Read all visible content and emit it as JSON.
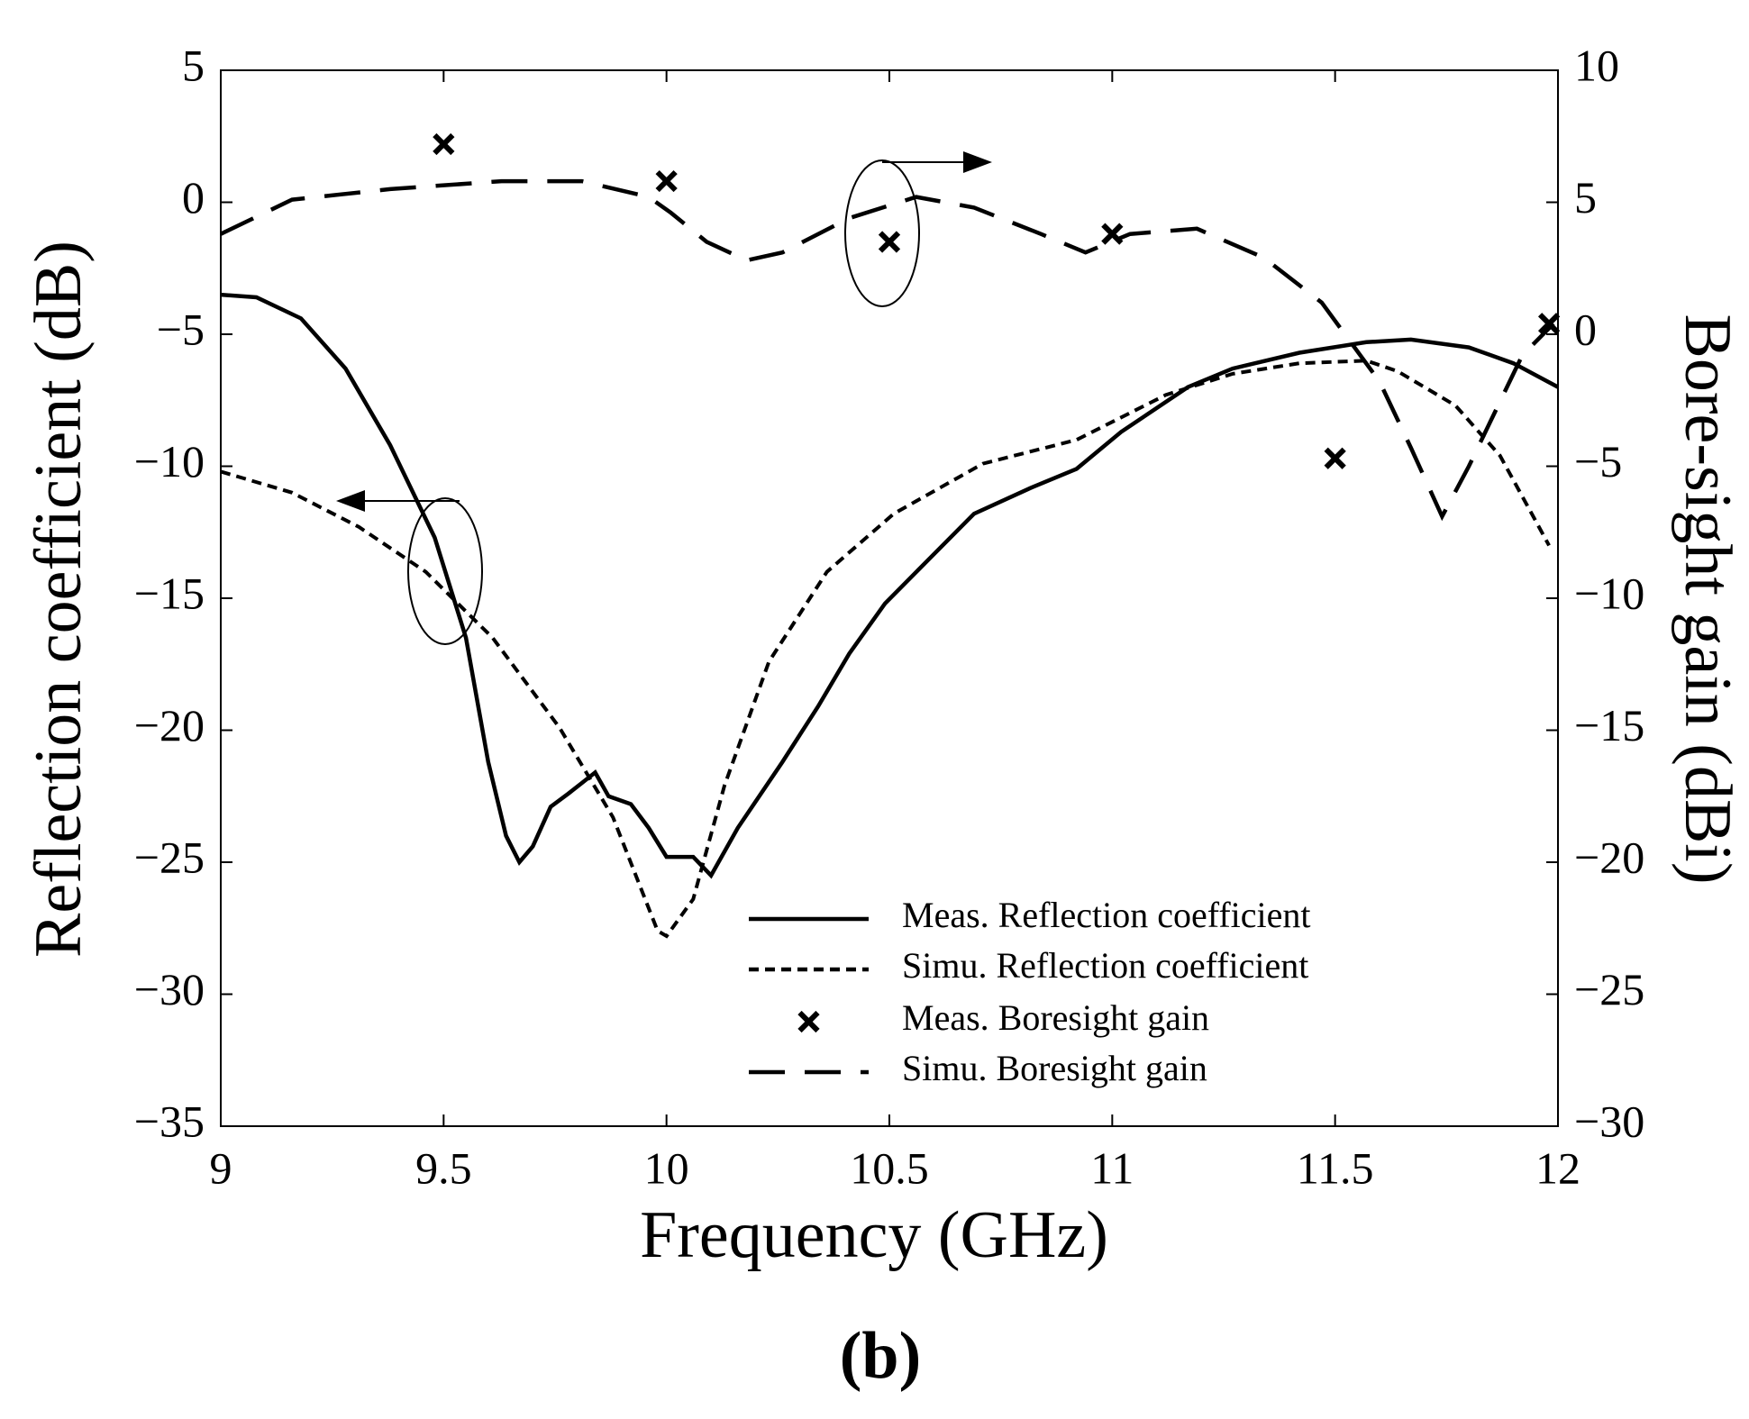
{
  "chart_data": {
    "type": "line",
    "xlabel": "Frequency (GHz)",
    "ylabel": "Reflection coefficient (dB)",
    "y2label": "Bore-sight gain (dBi)",
    "caption": "(b)",
    "xlim": [
      9,
      12
    ],
    "xticks": [
      9,
      9.5,
      10,
      10.5,
      11,
      11.5,
      12
    ],
    "ylim": [
      -35,
      5
    ],
    "yticks": [
      {
        "value": -35,
        "label": "−35"
      },
      {
        "value": -30,
        "label": "−30"
      },
      {
        "value": -25,
        "label": "−25"
      },
      {
        "value": -20,
        "label": "−20"
      },
      {
        "value": -15,
        "label": "−15"
      },
      {
        "value": -10,
        "label": "−10"
      },
      {
        "value": -5,
        "label": "−5"
      },
      0,
      5
    ],
    "y2lim": [
      -30,
      10
    ],
    "y2ticks": [
      {
        "value": -30,
        "label": "−30"
      },
      {
        "value": -25,
        "label": "−25"
      },
      {
        "value": -20,
        "label": "−20"
      },
      {
        "value": -15,
        "label": "−15"
      },
      {
        "value": -10,
        "label": "−10"
      },
      {
        "value": -5,
        "label": "−5"
      },
      0,
      5,
      10
    ],
    "grid": false,
    "legend": "lower right",
    "series": [
      {
        "name": "Meas. Reflection coefficient",
        "color": "#000000",
        "style": "solid",
        "x": [
          9.0,
          9.08,
          9.18,
          9.28,
          9.38,
          9.48,
          9.55,
          9.6,
          9.64,
          9.67,
          9.7,
          9.74,
          9.78,
          9.81,
          9.84,
          9.87,
          9.92,
          9.96,
          10.0,
          10.06,
          10.1,
          10.16,
          10.26,
          10.34,
          10.41,
          10.49,
          10.59,
          10.69,
          10.82,
          10.92,
          11.02,
          11.17,
          11.27,
          11.42,
          11.57,
          11.67,
          11.8,
          11.9,
          12.0
        ],
        "values": [
          -3.5,
          -3.6,
          -4.4,
          -6.3,
          -9.2,
          -12.7,
          -16.5,
          -21.2,
          -24,
          -25,
          -24.4,
          -22.9,
          -22.4,
          -22,
          -21.6,
          -22.5,
          -22.8,
          -23.7,
          -24.8,
          -24.8,
          -25.5,
          -23.7,
          -21.2,
          -19.1,
          -17.1,
          -15.2,
          -13.5,
          -11.8,
          -10.8,
          -10.1,
          -8.7,
          -7.0,
          -6.3,
          -5.7,
          -5.3,
          -5.2,
          -5.5,
          -6.1,
          -7.0
        ]
      },
      {
        "name": "Simu. Reflection coefficient",
        "color": "#000000",
        "style": "dotted",
        "x": [
          9.0,
          9.16,
          9.31,
          9.46,
          9.61,
          9.76,
          9.88,
          9.98,
          10.0,
          10.06,
          10.13,
          10.23,
          10.36,
          10.51,
          10.71,
          10.92,
          11.12,
          11.27,
          11.42,
          11.57,
          11.64,
          11.77,
          11.87,
          11.98
        ],
        "values": [
          -10.2,
          -11,
          -12.3,
          -14,
          -16.5,
          -19.9,
          -23.3,
          -27.6,
          -27.8,
          -26.4,
          -22.1,
          -17.4,
          -14,
          -11.8,
          -9.9,
          -9.0,
          -7.3,
          -6.5,
          -6.1,
          -6.0,
          -6.4,
          -7.7,
          -9.6,
          -13
        ]
      },
      {
        "name": "Meas. Boresight gain",
        "color": "#000000",
        "style": "marker",
        "axis": "y2",
        "x": [
          9.5,
          10.0,
          10.5,
          11.0,
          11.5,
          11.98
        ],
        "values": [
          7.2,
          5.8,
          3.5,
          3.8,
          -4.7,
          0.4
        ]
      },
      {
        "name": "Simu. Boresight gain",
        "color": "#000000",
        "style": "dashed",
        "axis": "y2",
        "x": [
          9.0,
          9.16,
          9.38,
          9.63,
          9.81,
          9.96,
          10.01,
          10.09,
          10.18,
          10.26,
          10.41,
          10.56,
          10.69,
          10.84,
          10.94,
          11.04,
          11.19,
          11.34,
          11.47,
          11.6,
          11.67,
          11.74,
          11.8,
          11.92,
          11.99
        ],
        "values": [
          3.8,
          5.1,
          5.5,
          5.8,
          5.8,
          5.2,
          4.6,
          3.5,
          2.8,
          3.1,
          4.4,
          5.2,
          4.8,
          3.8,
          3.1,
          3.8,
          4.0,
          2.9,
          1.2,
          -1.8,
          -4.3,
          -6.9,
          -5.0,
          -0.8,
          0.4
        ]
      }
    ]
  }
}
